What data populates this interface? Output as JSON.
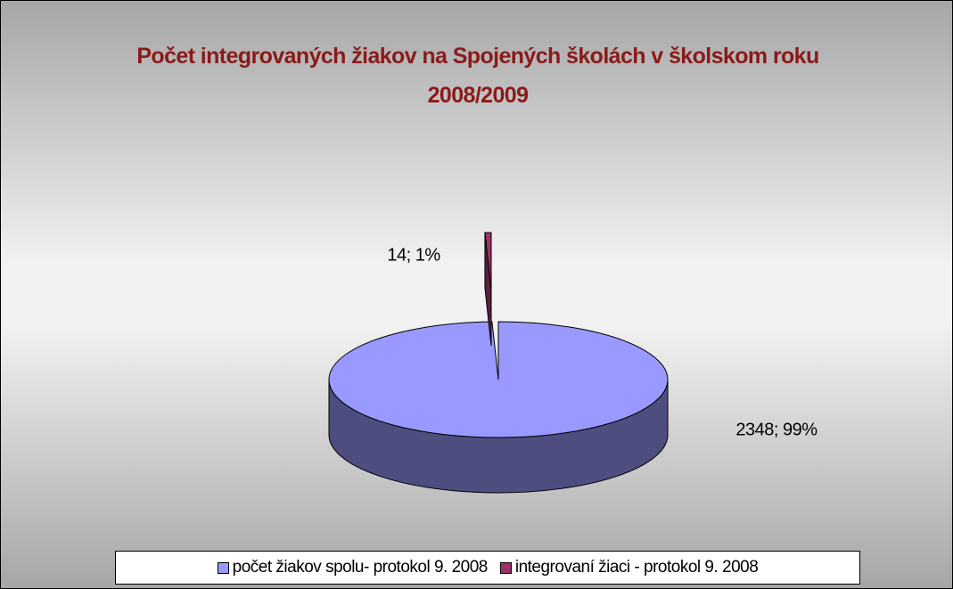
{
  "chart_data": {
    "type": "pie",
    "title": "Počet integrovaných žiakov na Spojených školách v školskom roku 2008/2009",
    "categories": [
      "počet žiakov spolu- protokol 9. 2008",
      "integrovaní žiaci - protokol 9. 2008"
    ],
    "values": [
      2348,
      14
    ],
    "value_labels": [
      "2348; 99%",
      "14; 1%"
    ],
    "colors": [
      "#9999ff",
      "#993366"
    ],
    "legend": "bottom"
  }
}
